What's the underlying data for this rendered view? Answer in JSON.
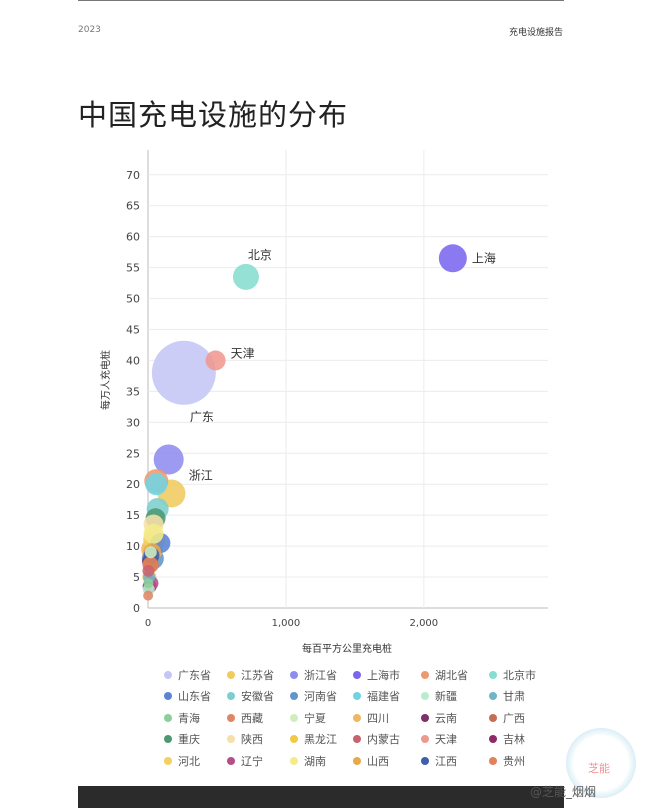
{
  "header": {
    "year": "2023",
    "report": "充电设施报告"
  },
  "page_title": "中国充电设施的分布",
  "footer": {
    "watermark": "@芝能_烟烟",
    "logo_text": "芝能"
  },
  "chart_data": {
    "type": "scatter",
    "xlabel": "每百平方公里充电桩",
    "ylabel": "每万人充电桩",
    "xlim": [
      0,
      2900
    ],
    "ylim": [
      0,
      74
    ],
    "x_ticks": [
      0,
      1000,
      2000
    ],
    "x_tick_labels": [
      "0",
      "1,000",
      "2,000"
    ],
    "y_ticks": [
      0,
      5,
      10,
      15,
      20,
      25,
      30,
      35,
      40,
      45,
      50,
      55,
      60,
      65,
      70
    ],
    "grid": true,
    "legend_position": "bottom",
    "series": [
      {
        "name": "广东省",
        "label": "广东",
        "x": 260,
        "y": 38,
        "size": 32,
        "color": "#c5c6f5"
      },
      {
        "name": "江苏省",
        "x": 170,
        "y": 18.5,
        "size": 14,
        "color": "#f0cb5e"
      },
      {
        "name": "浙江省",
        "label": "浙江",
        "x": 150,
        "y": 24,
        "size": 15,
        "color": "#8f8cef"
      },
      {
        "name": "上海市",
        "label": "上海",
        "x": 2210,
        "y": 56.5,
        "size": 14,
        "color": "#7a66ee"
      },
      {
        "name": "湖北省",
        "x": 60,
        "y": 20.5,
        "size": 12,
        "color": "#ef9a6e"
      },
      {
        "name": "北京市",
        "label": "北京",
        "x": 710,
        "y": 53.5,
        "size": 13,
        "color": "#86ddd0"
      },
      {
        "name": "山东省",
        "x": 90,
        "y": 10.5,
        "size": 10,
        "color": "#5b84d6"
      },
      {
        "name": "安徽省",
        "x": 70,
        "y": 16,
        "size": 11,
        "color": "#7ccfcf"
      },
      {
        "name": "河南省",
        "x": 35,
        "y": 8,
        "size": 11,
        "color": "#5f97c8"
      },
      {
        "name": "福建省",
        "x": 60,
        "y": 20,
        "size": 11,
        "color": "#6fd4e2"
      },
      {
        "name": "新疆",
        "x": 5,
        "y": 3,
        "size": 6,
        "color": "#b8eccc"
      },
      {
        "name": "甘肃",
        "x": 8,
        "y": 5,
        "size": 6,
        "color": "#6fb6c8"
      },
      {
        "name": "青海",
        "x": 3,
        "y": 4,
        "size": 5,
        "color": "#8ccf9a"
      },
      {
        "name": "西藏",
        "x": 1,
        "y": 2,
        "size": 5,
        "color": "#e08666"
      },
      {
        "name": "宁夏",
        "x": 20,
        "y": 9,
        "size": 6,
        "color": "#cfeec0"
      },
      {
        "name": "四川",
        "x": 30,
        "y": 9.5,
        "size": 11,
        "color": "#f1b660"
      },
      {
        "name": "云南",
        "x": 15,
        "y": 7.5,
        "size": 8,
        "color": "#7f2f6a"
      },
      {
        "name": "广西",
        "x": 20,
        "y": 7,
        "size": 8,
        "color": "#c46f52"
      },
      {
        "name": "重庆",
        "x": 55,
        "y": 14.5,
        "size": 10,
        "color": "#4f9873"
      },
      {
        "name": "陕西",
        "x": 40,
        "y": 13.5,
        "size": 10,
        "color": "#f6e0a8"
      },
      {
        "name": "黑龙江",
        "x": 10,
        "y": 5,
        "size": 7,
        "color": "#f2c944"
      },
      {
        "name": "内蒙古",
        "x": 3,
        "y": 6,
        "size": 6,
        "color": "#c9626f"
      },
      {
        "name": "天津",
        "label": "天津",
        "x": 490,
        "y": 40,
        "size": 10,
        "color": "#ef9890"
      },
      {
        "name": "吉林",
        "x": 12,
        "y": 3.5,
        "size": 7,
        "color": "#8e2a66"
      },
      {
        "name": "河北",
        "x": 45,
        "y": 11,
        "size": 11,
        "color": "#f3d060"
      },
      {
        "name": "辽宁",
        "x": 25,
        "y": 4,
        "size": 7,
        "color": "#b64e86"
      },
      {
        "name": "湖南",
        "x": 40,
        "y": 12,
        "size": 10,
        "color": "#f4ec8a"
      },
      {
        "name": "山西",
        "x": 30,
        "y": 9,
        "size": 9,
        "color": "#e8a94a"
      },
      {
        "name": "江西",
        "x": 25,
        "y": 8.5,
        "size": 8,
        "color": "#3f5fa8"
      },
      {
        "name": "贵州",
        "x": 18,
        "y": 7,
        "size": 8,
        "color": "#e0825a"
      }
    ]
  }
}
